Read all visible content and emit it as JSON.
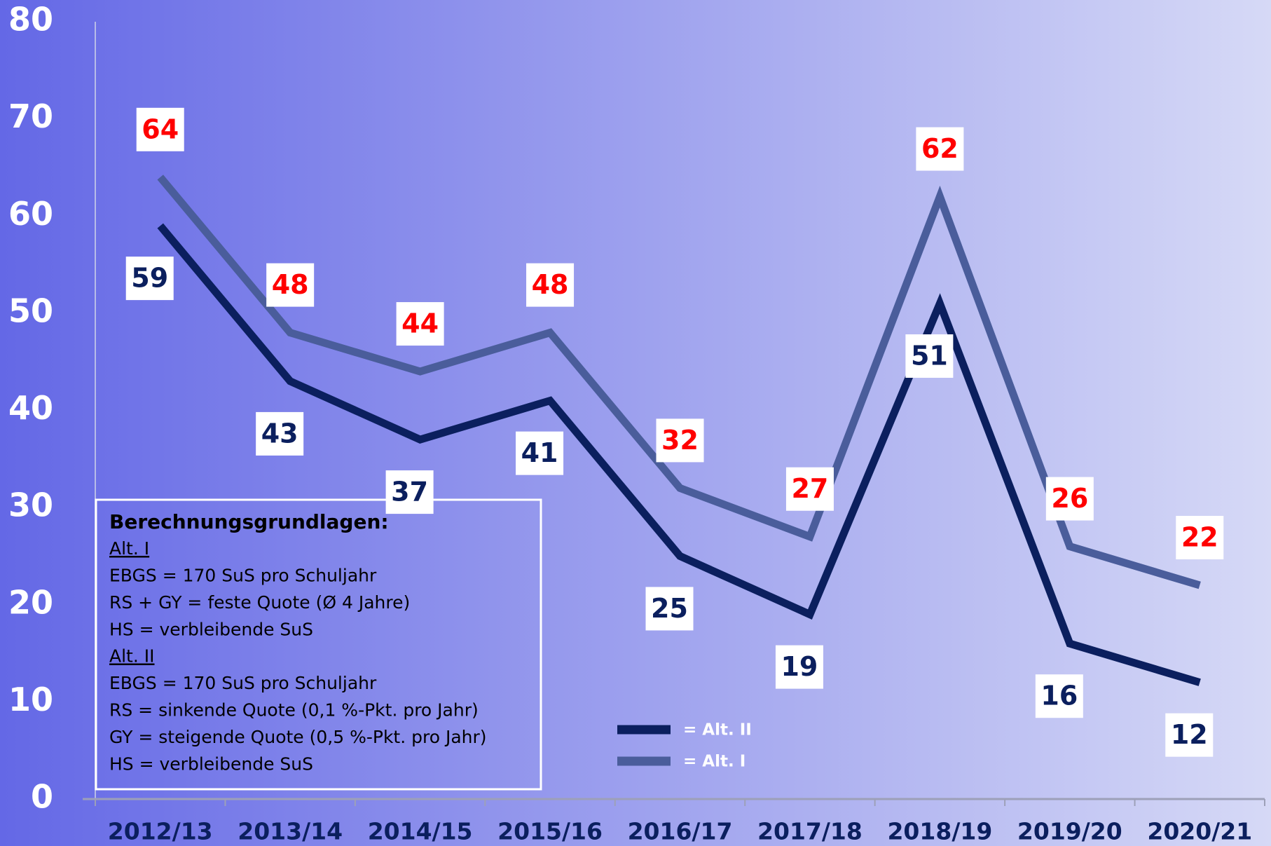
{
  "chart_data": {
    "type": "line",
    "categories": [
      "2012/13",
      "2013/14",
      "2014/15",
      "2015/16",
      "2016/17",
      "2017/18",
      "2018/19",
      "2019/20",
      "2020/21"
    ],
    "series": [
      {
        "name": "= Alt. II",
        "color": "#0b1f5e",
        "label_color": "#0b1f5e",
        "values": [
          59,
          43,
          37,
          41,
          25,
          19,
          51,
          16,
          12
        ]
      },
      {
        "name": "= Alt. I",
        "color": "#4a5d9b",
        "label_color": "#ff0000",
        "values": [
          64,
          48,
          44,
          48,
          32,
          27,
          62,
          26,
          22
        ]
      }
    ],
    "ylim": [
      0,
      80
    ],
    "yticks": [
      0,
      10,
      20,
      30,
      40,
      50,
      60,
      70,
      80
    ],
    "annotation_box": {
      "title": "Berechnungsgrundlagen:",
      "sections": [
        {
          "heading": "Alt. I",
          "lines": [
            "EBGS = 170 SuS pro Schuljahr",
            "RS + GY = feste Quote (Ø 4 Jahre)",
            "HS = verbleibende SuS"
          ]
        },
        {
          "heading": "Alt. II",
          "lines": [
            "EBGS = 170 SuS pro Schuljahr",
            "RS = sinkende Quote (0,1 %-Pkt. pro Jahr)",
            "GY = steigende Quote (0,5 %-Pkt. pro Jahr)",
            "HS = verbleibende SuS"
          ]
        }
      ]
    }
  }
}
